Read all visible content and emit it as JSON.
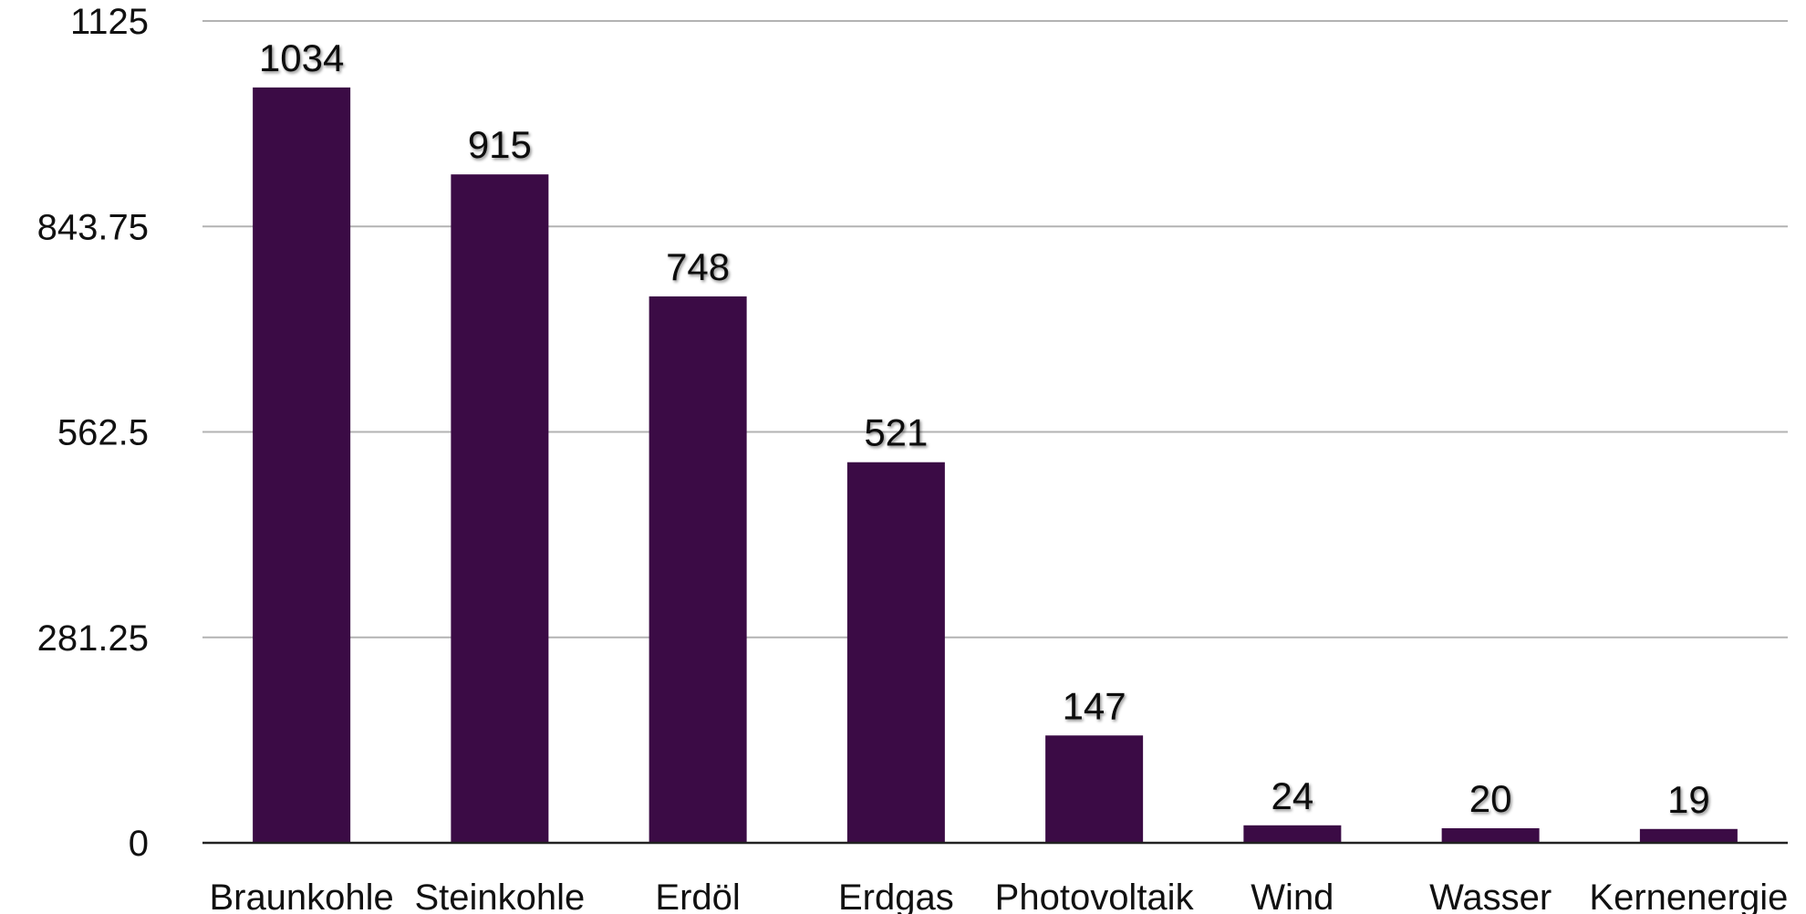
{
  "chart_data": {
    "type": "bar",
    "title": "",
    "xlabel": "",
    "ylabel": "",
    "categories": [
      "Braunkohle",
      "Steinkohle",
      "Erdöl",
      "Erdgas",
      "Photovoltaik",
      "Wind",
      "Wasser",
      "Kernenergie"
    ],
    "values": [
      1034,
      915,
      748,
      521,
      147,
      24,
      20,
      19
    ],
    "ylim": [
      0,
      1125
    ],
    "yticks": [
      0,
      281.25,
      562.5,
      843.75,
      1125
    ],
    "ytick_labels": [
      "0",
      "281.25",
      "562.5",
      "843.75",
      "1125"
    ],
    "grid": true,
    "legend": "none",
    "data_labels": true,
    "bar_color": "#3b0b45",
    "grid_color": "#b3b3b3",
    "axis_color": "#222222"
  }
}
